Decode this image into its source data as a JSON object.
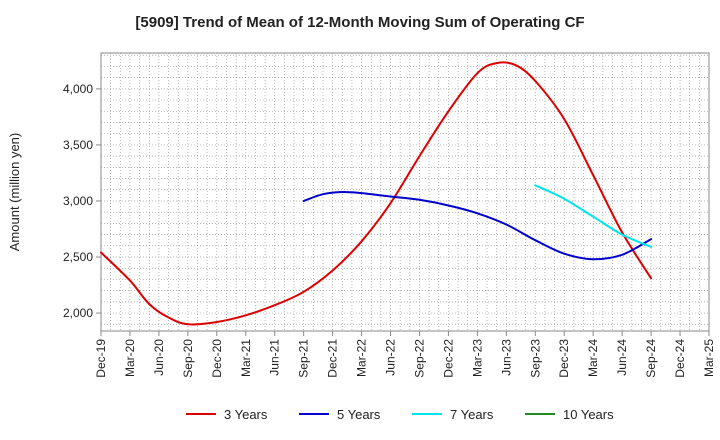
{
  "chart_data": {
    "type": "line",
    "title": "[5909]  Trend of Mean of 12-Month Moving Sum of Operating CF",
    "xlabel": "",
    "ylabel": "Amount (million yen)",
    "ylim": [
      1840,
      4320
    ],
    "yticks": [
      2000,
      2500,
      3000,
      3500,
      4000
    ],
    "ytick_labels": [
      "2,000",
      "2,500",
      "3,000",
      "3,500",
      "4,000"
    ],
    "x_range": [
      "Dec-19",
      "Mar-25"
    ],
    "xtick_labels": [
      "Dec-19",
      "Mar-20",
      "Jun-20",
      "Sep-20",
      "Dec-20",
      "Mar-21",
      "Jun-21",
      "Sep-21",
      "Dec-21",
      "Mar-22",
      "Jun-22",
      "Sep-22",
      "Dec-22",
      "Mar-23",
      "Jun-23",
      "Sep-23",
      "Dec-23",
      "Mar-24",
      "Jun-24",
      "Sep-24",
      "Dec-24",
      "Mar-25"
    ],
    "grid": true,
    "legend_position": "bottom",
    "series": [
      {
        "name": "3 Years",
        "color": "#dd0000",
        "points": [
          [
            "Dec-19",
            2540
          ],
          [
            "Mar-20",
            2290
          ],
          [
            "May-20",
            2080
          ],
          [
            "Jul-20",
            1960
          ],
          [
            "Sep-20",
            1900
          ],
          [
            "Dec-20",
            1920
          ],
          [
            "Mar-21",
            1980
          ],
          [
            "Jun-21",
            2070
          ],
          [
            "Sep-21",
            2190
          ],
          [
            "Dec-21",
            2380
          ],
          [
            "Mar-22",
            2640
          ],
          [
            "Jun-22",
            2980
          ],
          [
            "Sep-22",
            3400
          ],
          [
            "Dec-22",
            3800
          ],
          [
            "Mar-23",
            4140
          ],
          [
            "May-23",
            4230
          ],
          [
            "Jul-23",
            4210
          ],
          [
            "Sep-23",
            4070
          ],
          [
            "Dec-23",
            3730
          ],
          [
            "Mar-24",
            3230
          ],
          [
            "Jun-24",
            2720
          ],
          [
            "Sep-24",
            2310
          ]
        ]
      },
      {
        "name": "5 Years",
        "color": "#0000cc",
        "points": [
          [
            "Sep-21",
            3000
          ],
          [
            "Nov-21",
            3060
          ],
          [
            "Jan-22",
            3080
          ],
          [
            "Mar-22",
            3070
          ],
          [
            "Jun-22",
            3040
          ],
          [
            "Sep-22",
            3010
          ],
          [
            "Dec-22",
            2960
          ],
          [
            "Mar-23",
            2890
          ],
          [
            "Jun-23",
            2790
          ],
          [
            "Sep-23",
            2650
          ],
          [
            "Dec-23",
            2530
          ],
          [
            "Mar-24",
            2480
          ],
          [
            "Jun-24",
            2520
          ],
          [
            "Sep-24",
            2660
          ]
        ]
      },
      {
        "name": "7 Years",
        "color": "#00e5ee",
        "points": [
          [
            "Sep-23",
            3140
          ],
          [
            "Dec-23",
            3020
          ],
          [
            "Mar-24",
            2860
          ],
          [
            "Jun-24",
            2700
          ],
          [
            "Sep-24",
            2590
          ]
        ]
      },
      {
        "name": "10 Years",
        "color": "#228b22",
        "points": []
      }
    ]
  }
}
